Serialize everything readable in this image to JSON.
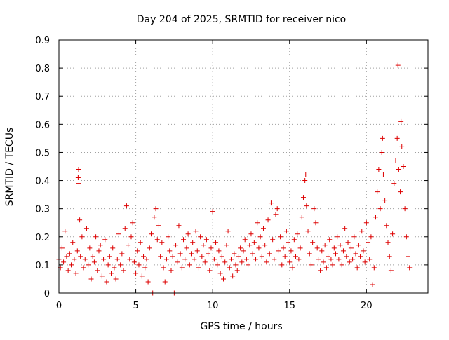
{
  "chart_data": {
    "type": "scatter",
    "title": "Day 204 of 2025, SRMTID for receiver nico",
    "xlabel": "GPS time / hours",
    "ylabel": "SRMTID / TECUs",
    "xlim": [
      0,
      24
    ],
    "ylim": [
      0,
      0.9
    ],
    "xticks": [
      0,
      5,
      10,
      15,
      20
    ],
    "xtick_labels": [
      "0",
      "5",
      "10",
      "15",
      "20"
    ],
    "yticks": [
      0,
      0.1,
      0.2,
      0.3,
      0.4,
      0.5,
      0.6,
      0.7,
      0.8,
      0.9
    ],
    "ytick_labels": [
      "0",
      "0.1",
      "0.2",
      "0.3",
      "0.4",
      "0.5",
      "0.6",
      "0.7",
      "0.8",
      "0.9"
    ],
    "grid": true,
    "marker": "+",
    "color": "#dd0000",
    "series": [
      {
        "name": "SRMTID",
        "points": [
          [
            0.0,
            0.12
          ],
          [
            0.1,
            0.09
          ],
          [
            0.2,
            0.16
          ],
          [
            0.3,
            0.11
          ],
          [
            0.4,
            0.22
          ],
          [
            0.5,
            0.13
          ],
          [
            0.6,
            0.08
          ],
          [
            0.7,
            0.14
          ],
          [
            0.8,
            0.1
          ],
          [
            0.9,
            0.18
          ],
          [
            1.0,
            0.12
          ],
          [
            1.1,
            0.07
          ],
          [
            1.2,
            0.15
          ],
          [
            1.25,
            0.41
          ],
          [
            1.28,
            0.44
          ],
          [
            1.3,
            0.39
          ],
          [
            1.35,
            0.26
          ],
          [
            1.4,
            0.13
          ],
          [
            1.5,
            0.2
          ],
          [
            1.6,
            0.09
          ],
          [
            1.7,
            0.12
          ],
          [
            1.8,
            0.23
          ],
          [
            1.9,
            0.1
          ],
          [
            2.0,
            0.16
          ],
          [
            2.1,
            0.05
          ],
          [
            2.2,
            0.13
          ],
          [
            2.3,
            0.11
          ],
          [
            2.4,
            0.2
          ],
          [
            2.5,
            0.08
          ],
          [
            2.6,
            0.15
          ],
          [
            2.7,
            0.17
          ],
          [
            2.8,
            0.06
          ],
          [
            2.9,
            0.12
          ],
          [
            3.0,
            0.19
          ],
          [
            3.1,
            0.04
          ],
          [
            3.2,
            0.1
          ],
          [
            3.3,
            0.13
          ],
          [
            3.4,
            0.07
          ],
          [
            3.5,
            0.16
          ],
          [
            3.6,
            0.09
          ],
          [
            3.7,
            0.05
          ],
          [
            3.8,
            0.12
          ],
          [
            3.9,
            0.21
          ],
          [
            4.0,
            0.1
          ],
          [
            4.1,
            0.14
          ],
          [
            4.2,
            0.08
          ],
          [
            4.3,
            0.23
          ],
          [
            4.4,
            0.31
          ],
          [
            4.5,
            0.17
          ],
          [
            4.6,
            0.12
          ],
          [
            4.7,
            0.2
          ],
          [
            4.8,
            0.25
          ],
          [
            4.9,
            0.11
          ],
          [
            5.0,
            0.07
          ],
          [
            5.1,
            0.15
          ],
          [
            5.2,
            0.1
          ],
          [
            5.3,
            0.18
          ],
          [
            5.4,
            0.06
          ],
          [
            5.5,
            0.13
          ],
          [
            5.6,
            0.09
          ],
          [
            5.7,
            0.12
          ],
          [
            5.8,
            0.04
          ],
          [
            5.9,
            0.16
          ],
          [
            6.0,
            0.21
          ],
          [
            6.1,
            0.0
          ],
          [
            6.2,
            0.27
          ],
          [
            6.3,
            0.3
          ],
          [
            6.4,
            0.19
          ],
          [
            6.5,
            0.24
          ],
          [
            6.6,
            0.13
          ],
          [
            6.7,
            0.18
          ],
          [
            6.8,
            0.09
          ],
          [
            6.9,
            0.04
          ],
          [
            7.0,
            0.12
          ],
          [
            7.1,
            0.2
          ],
          [
            7.2,
            0.15
          ],
          [
            7.3,
            0.08
          ],
          [
            7.4,
            0.13
          ],
          [
            7.5,
            0.0
          ],
          [
            7.6,
            0.17
          ],
          [
            7.7,
            0.11
          ],
          [
            7.8,
            0.24
          ],
          [
            7.9,
            0.14
          ],
          [
            8.0,
            0.09
          ],
          [
            8.1,
            0.19
          ],
          [
            8.2,
            0.12
          ],
          [
            8.3,
            0.16
          ],
          [
            8.4,
            0.21
          ],
          [
            8.5,
            0.1
          ],
          [
            8.6,
            0.14
          ],
          [
            8.7,
            0.18
          ],
          [
            8.8,
            0.12
          ],
          [
            8.9,
            0.22
          ],
          [
            9.0,
            0.15
          ],
          [
            9.1,
            0.09
          ],
          [
            9.2,
            0.2
          ],
          [
            9.3,
            0.13
          ],
          [
            9.4,
            0.17
          ],
          [
            9.5,
            0.11
          ],
          [
            9.6,
            0.19
          ],
          [
            9.7,
            0.14
          ],
          [
            9.8,
            0.08
          ],
          [
            9.9,
            0.16
          ],
          [
            10.0,
            0.29
          ],
          [
            10.1,
            0.12
          ],
          [
            10.2,
            0.18
          ],
          [
            10.3,
            0.1
          ],
          [
            10.4,
            0.15
          ],
          [
            10.5,
            0.07
          ],
          [
            10.6,
            0.13
          ],
          [
            10.7,
            0.05
          ],
          [
            10.8,
            0.11
          ],
          [
            10.9,
            0.17
          ],
          [
            11.0,
            0.22
          ],
          [
            11.1,
            0.09
          ],
          [
            11.2,
            0.12
          ],
          [
            11.3,
            0.06
          ],
          [
            11.4,
            0.14
          ],
          [
            11.5,
            0.1
          ],
          [
            11.6,
            0.08
          ],
          [
            11.7,
            0.13
          ],
          [
            11.8,
            0.16
          ],
          [
            11.9,
            0.11
          ],
          [
            12.0,
            0.15
          ],
          [
            12.1,
            0.19
          ],
          [
            12.2,
            0.12
          ],
          [
            12.3,
            0.1
          ],
          [
            12.4,
            0.17
          ],
          [
            12.5,
            0.21
          ],
          [
            12.6,
            0.14
          ],
          [
            12.7,
            0.18
          ],
          [
            12.8,
            0.12
          ],
          [
            12.9,
            0.25
          ],
          [
            13.0,
            0.16
          ],
          [
            13.1,
            0.2
          ],
          [
            13.2,
            0.13
          ],
          [
            13.3,
            0.23
          ],
          [
            13.4,
            0.17
          ],
          [
            13.5,
            0.11
          ],
          [
            13.6,
            0.26
          ],
          [
            13.7,
            0.14
          ],
          [
            13.8,
            0.32
          ],
          [
            13.9,
            0.19
          ],
          [
            14.0,
            0.12
          ],
          [
            14.1,
            0.28
          ],
          [
            14.2,
            0.3
          ],
          [
            14.3,
            0.15
          ],
          [
            14.4,
            0.2
          ],
          [
            14.5,
            0.1
          ],
          [
            14.6,
            0.16
          ],
          [
            14.7,
            0.13
          ],
          [
            14.8,
            0.22
          ],
          [
            14.9,
            0.18
          ],
          [
            15.0,
            0.11
          ],
          [
            15.1,
            0.15
          ],
          [
            15.2,
            0.09
          ],
          [
            15.3,
            0.19
          ],
          [
            15.4,
            0.13
          ],
          [
            15.5,
            0.21
          ],
          [
            15.6,
            0.12
          ],
          [
            15.7,
            0.16
          ],
          [
            15.8,
            0.27
          ],
          [
            15.9,
            0.34
          ],
          [
            16.0,
            0.4
          ],
          [
            16.05,
            0.42
          ],
          [
            16.1,
            0.31
          ],
          [
            16.2,
            0.22
          ],
          [
            16.3,
            0.14
          ],
          [
            16.4,
            0.1
          ],
          [
            16.5,
            0.18
          ],
          [
            16.6,
            0.3
          ],
          [
            16.7,
            0.25
          ],
          [
            16.8,
            0.16
          ],
          [
            16.9,
            0.12
          ],
          [
            17.0,
            0.08
          ],
          [
            17.1,
            0.15
          ],
          [
            17.2,
            0.11
          ],
          [
            17.3,
            0.17
          ],
          [
            17.4,
            0.09
          ],
          [
            17.5,
            0.13
          ],
          [
            17.6,
            0.19
          ],
          [
            17.7,
            0.12
          ],
          [
            17.8,
            0.1
          ],
          [
            17.9,
            0.16
          ],
          [
            18.0,
            0.14
          ],
          [
            18.1,
            0.2
          ],
          [
            18.2,
            0.12
          ],
          [
            18.3,
            0.17
          ],
          [
            18.4,
            0.1
          ],
          [
            18.5,
            0.15
          ],
          [
            18.6,
            0.23
          ],
          [
            18.7,
            0.13
          ],
          [
            18.8,
            0.18
          ],
          [
            18.9,
            0.11
          ],
          [
            19.0,
            0.16
          ],
          [
            19.1,
            0.12
          ],
          [
            19.2,
            0.2
          ],
          [
            19.3,
            0.14
          ],
          [
            19.4,
            0.09
          ],
          [
            19.5,
            0.17
          ],
          [
            19.6,
            0.13
          ],
          [
            19.7,
            0.22
          ],
          [
            19.8,
            0.15
          ],
          [
            19.9,
            0.11
          ],
          [
            20.0,
            0.25
          ],
          [
            20.1,
            0.18
          ],
          [
            20.2,
            0.12
          ],
          [
            20.3,
            0.2
          ],
          [
            20.4,
            0.03
          ],
          [
            20.5,
            0.09
          ],
          [
            20.6,
            0.27
          ],
          [
            20.7,
            0.36
          ],
          [
            20.8,
            0.44
          ],
          [
            20.9,
            0.3
          ],
          [
            21.0,
            0.5
          ],
          [
            21.05,
            0.55
          ],
          [
            21.1,
            0.42
          ],
          [
            21.2,
            0.33
          ],
          [
            21.3,
            0.24
          ],
          [
            21.4,
            0.18
          ],
          [
            21.5,
            0.13
          ],
          [
            21.6,
            0.08
          ],
          [
            21.7,
            0.21
          ],
          [
            21.8,
            0.39
          ],
          [
            21.9,
            0.47
          ],
          [
            22.0,
            0.55
          ],
          [
            22.05,
            0.81
          ],
          [
            22.1,
            0.44
          ],
          [
            22.2,
            0.36
          ],
          [
            22.25,
            0.61
          ],
          [
            22.3,
            0.52
          ],
          [
            22.4,
            0.45
          ],
          [
            22.5,
            0.3
          ],
          [
            22.6,
            0.2
          ],
          [
            22.7,
            0.13
          ],
          [
            22.8,
            0.09
          ]
        ]
      }
    ]
  }
}
